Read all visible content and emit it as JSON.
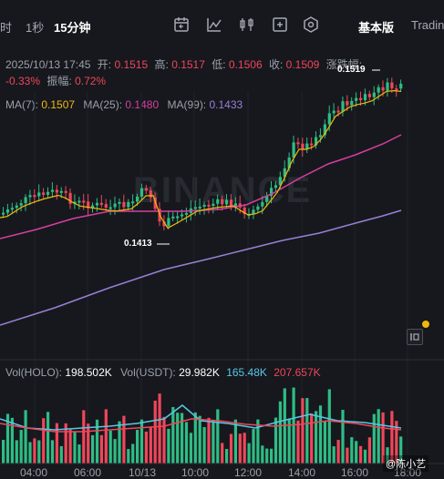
{
  "toolbar": {
    "timeframes": [
      "时",
      "1秒",
      "15分钟"
    ],
    "active_timeframe": "15分钟",
    "icons": [
      "calendar-icon",
      "line-tool-icon",
      "indicator-icon",
      "settings-icon"
    ],
    "basic_label": "基本版",
    "trading_label": "Tradin"
  },
  "ohlc": {
    "date": "2025/10/13 17:45",
    "open_label": "开:",
    "open": "0.1515",
    "high_label": "高:",
    "high": "0.1517",
    "low_label": "低:",
    "low": "0.1506",
    "close_label": "收:",
    "close": "0.1509",
    "change_label": "涨跌幅:",
    "change": "-0.33%",
    "amplitude_label": "振幅:",
    "amplitude": "0.72%"
  },
  "ma": {
    "ma7_label": "MA(7):",
    "ma7": "0.1507",
    "ma25_label": "MA(25):",
    "ma25": "0.1480",
    "ma99_label": "MA(99):",
    "ma99": "0.1433"
  },
  "annotations": {
    "low_price": "0.1413",
    "high_price": "0.1519"
  },
  "watermark": "BINANCE",
  "volume": {
    "label1": "Vol(HOLO):",
    "value1": "198.502K",
    "label2": "Vol(USDT):",
    "value2": "29.982K",
    "value3": "165.48K",
    "value4": "207.657K"
  },
  "x_axis": [
    "04:00",
    "06:00",
    "10/13",
    "10:00",
    "12:00",
    "14:00",
    "16:00",
    "18:00"
  ],
  "credit": "@陈小艺",
  "colors": {
    "up": "#2ebd85",
    "down": "#f0465a",
    "ma7": "#f0b90b",
    "ma25": "#d63fa0",
    "ma99": "#9a7fd8",
    "background": "#16181d"
  },
  "chart_data": {
    "type": "candlestick",
    "x_labels": [
      "04:00",
      "06:00",
      "10/13",
      "10:00",
      "12:00",
      "14:00",
      "16:00",
      "18:00"
    ],
    "annotated_low": 0.1413,
    "annotated_high": 0.1519,
    "last_close": 0.1509,
    "ma7_last": 0.1507,
    "ma25_last": 0.148,
    "ma99_last": 0.1433
  }
}
